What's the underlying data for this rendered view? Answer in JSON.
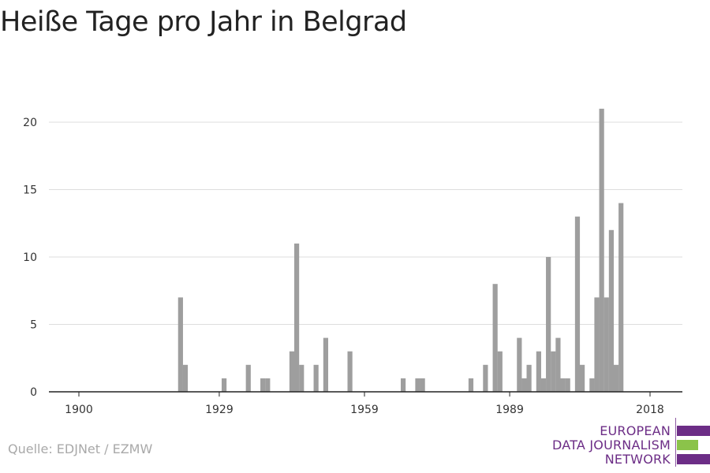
{
  "title": "Heiße Tage pro Jahr in Belgrad",
  "source": "Quelle: EDJNet / EZMW",
  "logo": {
    "lines": [
      "EUROPEAN",
      "DATA JOURNALISM",
      "NETWORK"
    ],
    "text_color": "#6c2d86",
    "bar_colors": [
      "#6c2d86",
      "#8bc34a",
      "#6c2d86"
    ]
  },
  "colors": {
    "bar": "#9e9e9e",
    "grid": "#dddddd",
    "axis": "#222222",
    "title": "#222222"
  },
  "chart_data": {
    "type": "bar",
    "title": "Heiße Tage pro Jahr in Belgrad",
    "xlabel": "",
    "ylabel": "",
    "xlim": [
      1894,
      2020
    ],
    "ylim": [
      0,
      22
    ],
    "x_ticks": [
      1900,
      1929,
      1959,
      1989,
      2018
    ],
    "y_ticks": [
      0,
      5,
      10,
      15,
      20
    ],
    "grid": true,
    "x": [
      1921,
      1922,
      1930,
      1935,
      1938,
      1939,
      1944,
      1945,
      1946,
      1949,
      1951,
      1956,
      1967,
      1970,
      1971,
      1981,
      1984,
      1986,
      1987,
      1991,
      1992,
      1993,
      1995,
      1996,
      1997,
      1998,
      1999,
      2000,
      2001,
      2003,
      2004,
      2006,
      2007,
      2008,
      2009,
      2010,
      2011,
      2012,
      2013
    ],
    "values": [
      7,
      2,
      1,
      2,
      1,
      1,
      3,
      11,
      2,
      2,
      4,
      3,
      1,
      1,
      1,
      1,
      2,
      8,
      3,
      4,
      1,
      2,
      3,
      1,
      10,
      3,
      4,
      1,
      1,
      13,
      2,
      1,
      7,
      21,
      7,
      12,
      2,
      14,
      0
    ]
  }
}
